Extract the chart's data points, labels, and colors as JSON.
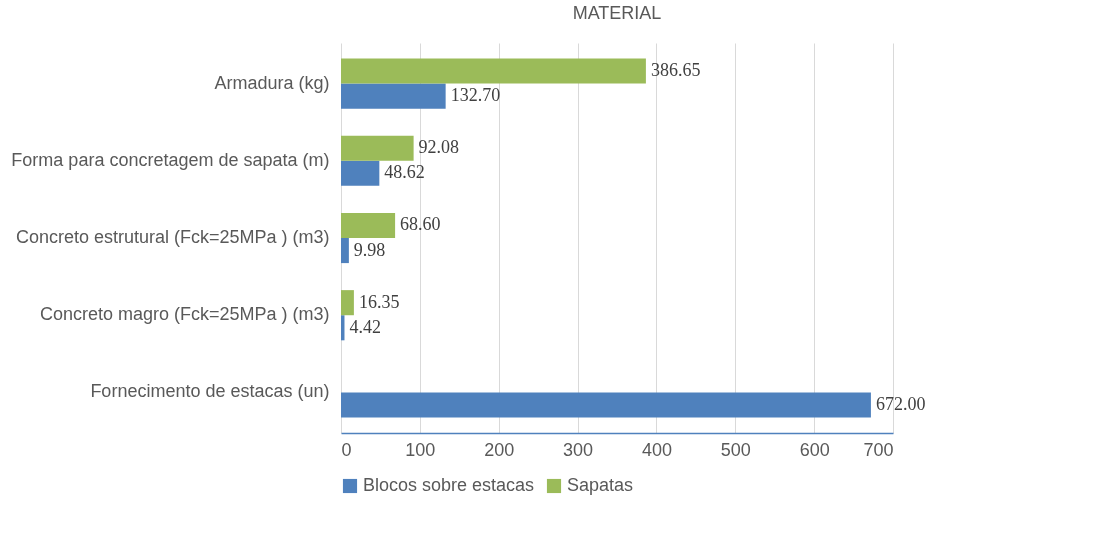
{
  "chart_data": {
    "type": "bar",
    "orientation": "horizontal",
    "title": "MATERIAL",
    "categories": [
      "Armadura (kg)",
      "Forma para concretagem de sapata (m)",
      "Concreto estrutural (Fck=25MPa ) (m3)",
      "Concreto magro (Fck=25MPa ) (m3)",
      "Fornecimento de estacas (un)"
    ],
    "series": [
      {
        "name": "Blocos sobre estacas",
        "color": "#4f81bd",
        "values": [
          132.7,
          48.62,
          9.98,
          4.42,
          672.0
        ],
        "value_labels": [
          "132.70",
          "48.62",
          "9.98",
          "4.42",
          "672.00"
        ]
      },
      {
        "name": "Sapatas",
        "color": "#9bbb59",
        "values": [
          386.65,
          92.08,
          68.6,
          16.35,
          null
        ],
        "value_labels": [
          "386.65",
          "92.08",
          "68.60",
          "16.35",
          null
        ]
      }
    ],
    "xlim": [
      0,
      700
    ],
    "xticks": [
      0,
      100,
      200,
      300,
      400,
      500,
      600,
      700
    ],
    "grid": "x",
    "legend": "bottom"
  }
}
